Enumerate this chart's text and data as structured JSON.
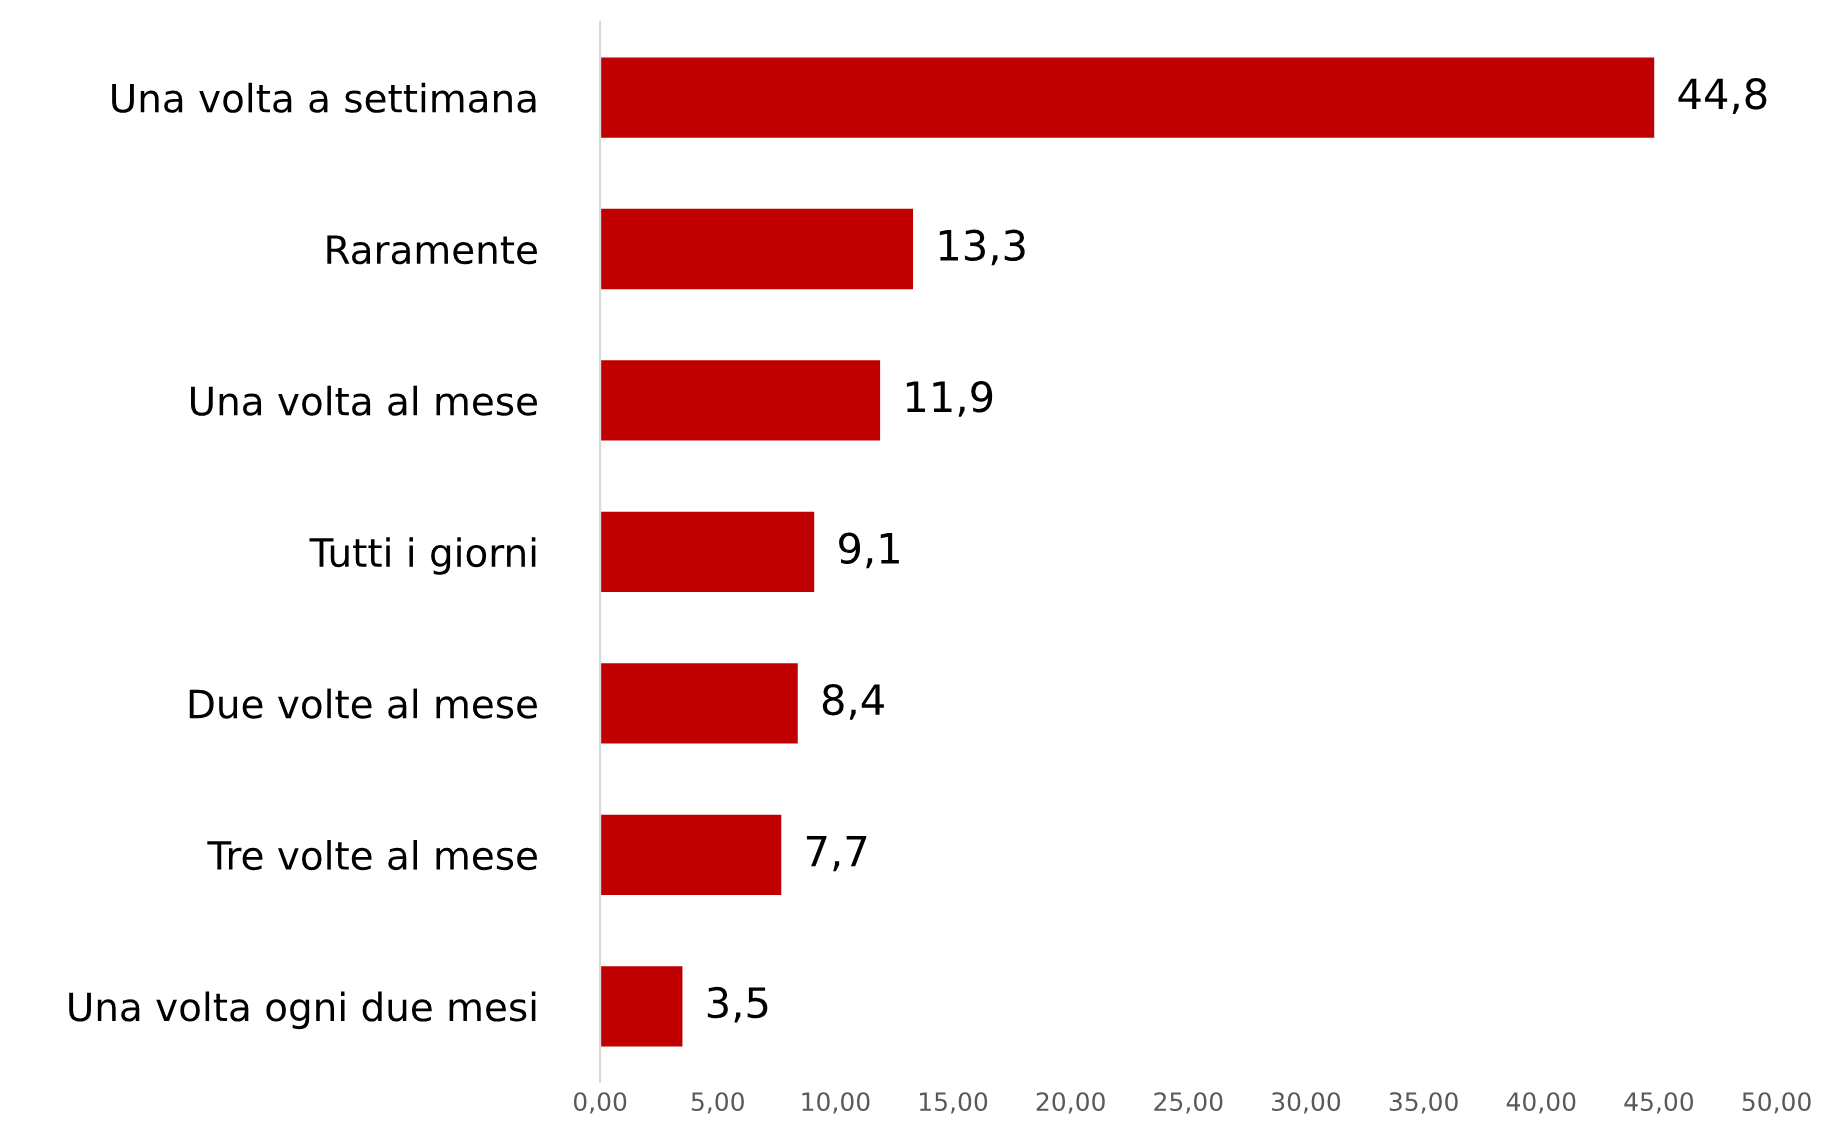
{
  "chart_data": {
    "type": "bar",
    "orientation": "horizontal",
    "categories": [
      "Una volta a settimana",
      "Raramente",
      "Una volta al mese",
      "Tutti i giorni",
      "Due volte al mese",
      "Tre volte al mese",
      "Una volta ogni due mesi"
    ],
    "values": [
      44.8,
      13.3,
      11.9,
      9.1,
      8.4,
      7.7,
      3.5
    ],
    "value_labels": [
      "44,8",
      "13,3",
      "11,9",
      "9,1",
      "8,4",
      "7,7",
      "3,5"
    ],
    "color": "#c00000",
    "xlim": [
      0,
      50
    ],
    "xticks": [
      {
        "value": 0,
        "label": "0,00"
      },
      {
        "value": 5,
        "label": "5,00"
      },
      {
        "value": 10,
        "label": "10,00"
      },
      {
        "value": 15,
        "label": "15,00"
      },
      {
        "value": 20,
        "label": "20,00"
      },
      {
        "value": 25,
        "label": "25,00"
      },
      {
        "value": 30,
        "label": "30,00"
      },
      {
        "value": 35,
        "label": "35,00"
      },
      {
        "value": 40,
        "label": "40,00"
      },
      {
        "value": 45,
        "label": "45,00"
      },
      {
        "value": 50,
        "label": "50,00"
      }
    ],
    "grid": false
  }
}
